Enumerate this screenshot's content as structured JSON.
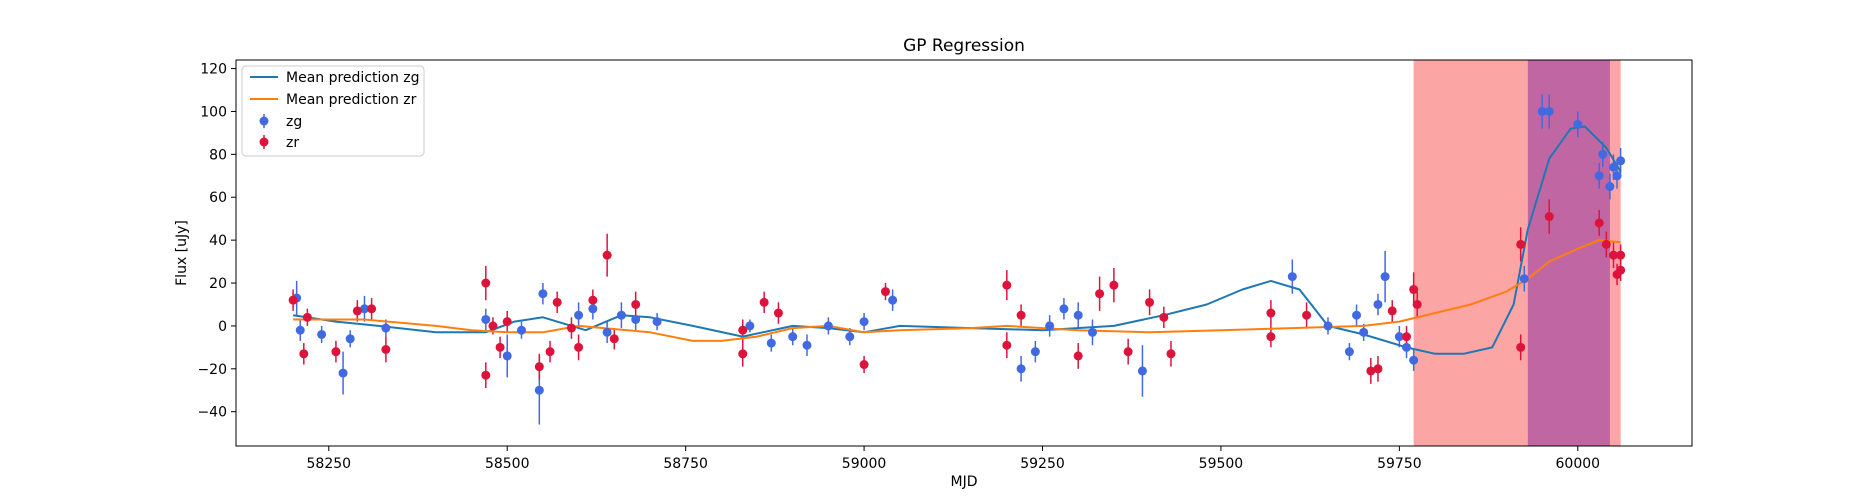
{
  "chart_data": {
    "type": "scatter",
    "title": "GP Regression",
    "xlabel": "MJD",
    "ylabel": "Flux [uJy]",
    "xlim": [
      58120,
      60160
    ],
    "ylim": [
      -56,
      124
    ],
    "x_ticks": [
      58250,
      58500,
      58750,
      59000,
      59250,
      59500,
      59750,
      60000
    ],
    "y_ticks": [
      -40,
      -20,
      0,
      20,
      40,
      60,
      80,
      100,
      120
    ],
    "grid": false,
    "legend": {
      "position": "top-left",
      "entries": [
        "Mean prediction zg",
        "Mean prediction zr",
        "zg",
        "zr"
      ]
    },
    "spans": [
      {
        "x0": 59770,
        "x1": 60060,
        "color": "#fca5a5"
      },
      {
        "x0": 59930,
        "x1": 60045,
        "color": "#c067a3"
      }
    ],
    "lines": [
      {
        "name": "Mean prediction zg",
        "color": "#1f77b4",
        "x": [
          58200,
          58260,
          58320,
          58400,
          58470,
          58510,
          58550,
          58610,
          58660,
          58700,
          58760,
          58830,
          58900,
          58950,
          59000,
          59050,
          59150,
          59250,
          59350,
          59420,
          59480,
          59530,
          59570,
          59610,
          59650,
          59700,
          59760,
          59800,
          59840,
          59880,
          59910,
          59930,
          59960,
          59990,
          60010,
          60040,
          60060
        ],
        "y": [
          5,
          2,
          0,
          -3,
          -3,
          2,
          4,
          -2,
          5,
          4,
          0,
          -5,
          0,
          -1,
          -3,
          0,
          -1,
          -2,
          0,
          5,
          10,
          17,
          21,
          17,
          0,
          -4,
          -10,
          -13,
          -13,
          -10,
          10,
          45,
          78,
          92,
          93,
          83,
          72
        ]
      },
      {
        "name": "Mean prediction zr",
        "color": "#ff7f0e",
        "x": [
          58200,
          58300,
          58400,
          58450,
          58500,
          58550,
          58600,
          58700,
          58760,
          58800,
          58850,
          58900,
          58950,
          59000,
          59050,
          59150,
          59200,
          59300,
          59400,
          59500,
          59600,
          59700,
          59750,
          59800,
          59850,
          59900,
          59930,
          59960,
          60000,
          60030,
          60060
        ],
        "y": [
          3,
          3,
          0,
          -2,
          -3,
          -3,
          0,
          -3,
          -7,
          -7,
          -5,
          -1,
          0,
          -3,
          -2,
          -1,
          0,
          -2,
          -3,
          -2,
          -1,
          0,
          2,
          6,
          10,
          16,
          22,
          30,
          36,
          40,
          39
        ]
      }
    ],
    "series": [
      {
        "name": "zg",
        "color": "#4169e1",
        "points": [
          [
            58205,
            13,
            8
          ],
          [
            58210,
            -2,
            5
          ],
          [
            58240,
            -4,
            4
          ],
          [
            58270,
            -22,
            10
          ],
          [
            58280,
            -6,
            4
          ],
          [
            58300,
            8,
            6
          ],
          [
            58330,
            -1,
            4
          ],
          [
            58470,
            3,
            5
          ],
          [
            58500,
            -14,
            10
          ],
          [
            58520,
            -2,
            4
          ],
          [
            58545,
            -30,
            16
          ],
          [
            58550,
            15,
            5
          ],
          [
            58600,
            5,
            6
          ],
          [
            58620,
            8,
            5
          ],
          [
            58640,
            -3,
            5
          ],
          [
            58660,
            5,
            6
          ],
          [
            58680,
            3,
            5
          ],
          [
            58710,
            2,
            4
          ],
          [
            58840,
            0,
            3
          ],
          [
            58870,
            -8,
            4
          ],
          [
            58900,
            -5,
            4
          ],
          [
            58920,
            -9,
            5
          ],
          [
            58950,
            0,
            4
          ],
          [
            58980,
            -5,
            4
          ],
          [
            59000,
            2,
            4
          ],
          [
            59040,
            12,
            5
          ],
          [
            59220,
            -20,
            6
          ],
          [
            59240,
            -12,
            5
          ],
          [
            59260,
            0,
            5
          ],
          [
            59280,
            8,
            5
          ],
          [
            59300,
            5,
            6
          ],
          [
            59320,
            -3,
            6
          ],
          [
            59390,
            -21,
            12
          ],
          [
            59600,
            23,
            8
          ],
          [
            59650,
            0,
            4
          ],
          [
            59680,
            -12,
            4
          ],
          [
            59690,
            5,
            5
          ],
          [
            59700,
            -3,
            4
          ],
          [
            59720,
            10,
            5
          ],
          [
            59730,
            23,
            12
          ],
          [
            59750,
            -5,
            5
          ],
          [
            59760,
            -10,
            5
          ],
          [
            59770,
            -16,
            5
          ],
          [
            59925,
            22,
            6
          ],
          [
            59950,
            100,
            8
          ],
          [
            59960,
            100,
            8
          ],
          [
            60000,
            94,
            6
          ],
          [
            60030,
            70,
            6
          ],
          [
            60035,
            80,
            6
          ],
          [
            60045,
            65,
            6
          ],
          [
            60050,
            74,
            6
          ],
          [
            60055,
            70,
            6
          ],
          [
            60060,
            77,
            6
          ]
        ]
      },
      {
        "name": "zr",
        "color": "#dc143c",
        "points": [
          [
            58200,
            12,
            5
          ],
          [
            58215,
            -13,
            5
          ],
          [
            58220,
            4,
            4
          ],
          [
            58260,
            -12,
            5
          ],
          [
            58290,
            7,
            5
          ],
          [
            58310,
            8,
            5
          ],
          [
            58330,
            -11,
            6
          ],
          [
            58470,
            20,
            8
          ],
          [
            58470,
            -23,
            6
          ],
          [
            58480,
            0,
            4
          ],
          [
            58490,
            -10,
            5
          ],
          [
            58500,
            2,
            5
          ],
          [
            58545,
            -19,
            6
          ],
          [
            58560,
            -12,
            5
          ],
          [
            58570,
            11,
            5
          ],
          [
            58590,
            -1,
            5
          ],
          [
            58600,
            -10,
            6
          ],
          [
            58620,
            12,
            5
          ],
          [
            58640,
            33,
            10
          ],
          [
            58650,
            -6,
            5
          ],
          [
            58680,
            10,
            6
          ],
          [
            58830,
            -13,
            6
          ],
          [
            58830,
            -2,
            5
          ],
          [
            58860,
            11,
            5
          ],
          [
            58880,
            6,
            5
          ],
          [
            59000,
            -18,
            4
          ],
          [
            59030,
            16,
            4
          ],
          [
            59200,
            19,
            7
          ],
          [
            59200,
            -9,
            6
          ],
          [
            59220,
            5,
            5
          ],
          [
            59300,
            -14,
            6
          ],
          [
            59330,
            15,
            8
          ],
          [
            59350,
            19,
            8
          ],
          [
            59370,
            -12,
            6
          ],
          [
            59400,
            11,
            6
          ],
          [
            59420,
            4,
            5
          ],
          [
            59430,
            -13,
            6
          ],
          [
            59570,
            6,
            6
          ],
          [
            59570,
            -5,
            5
          ],
          [
            59620,
            5,
            6
          ],
          [
            59710,
            -21,
            6
          ],
          [
            59720,
            -20,
            6
          ],
          [
            59740,
            7,
            5
          ],
          [
            59760,
            -5,
            5
          ],
          [
            59770,
            17,
            8
          ],
          [
            59775,
            10,
            6
          ],
          [
            59920,
            38,
            8
          ],
          [
            59920,
            -10,
            6
          ],
          [
            59960,
            51,
            8
          ],
          [
            60030,
            48,
            6
          ],
          [
            60040,
            38,
            6
          ],
          [
            60050,
            33,
            6
          ],
          [
            60055,
            24,
            5
          ],
          [
            60060,
            26,
            5
          ],
          [
            60060,
            33,
            5
          ]
        ]
      }
    ]
  }
}
